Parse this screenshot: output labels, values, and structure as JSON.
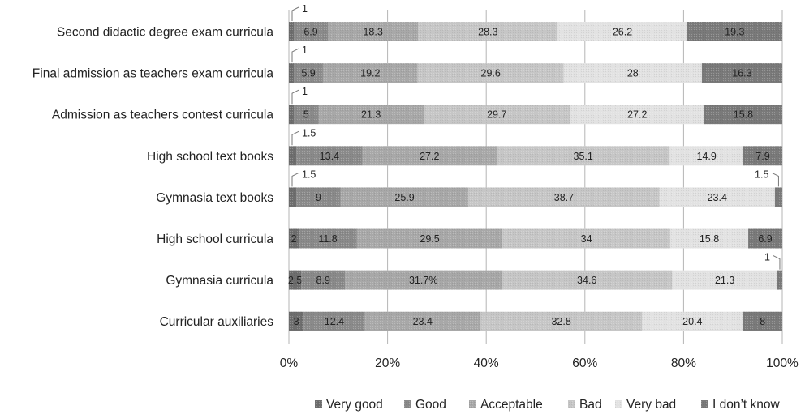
{
  "chart_data": {
    "type": "bar",
    "orientation": "horizontal",
    "stacked": "percent",
    "categories": [
      "Second didactic degree exam curricula",
      "Final admission as teachers exam curricula",
      "Admission as teachers contest curricula",
      "High school text books",
      "Gymnasia text books",
      "High school curricula",
      "Gymnasia curricula",
      "Curricular auxiliaries"
    ],
    "series": [
      {
        "name": "Very good",
        "color": "#6e6e6e",
        "values": [
          1,
          1,
          1,
          1.5,
          1.5,
          2,
          2.5,
          3
        ]
      },
      {
        "name": "Good",
        "color": "#8a8a8a",
        "values": [
          6.9,
          5.9,
          5,
          13.4,
          9,
          11.8,
          8.9,
          12.4
        ]
      },
      {
        "name": "Acceptable",
        "color": "#a8a8a8",
        "values": [
          18.3,
          19.2,
          21.3,
          27.2,
          25.9,
          29.5,
          31.7,
          23.4
        ]
      },
      {
        "name": "Bad",
        "color": "#c6c6c6",
        "values": [
          28.3,
          29.6,
          29.7,
          35.1,
          38.7,
          34,
          34.6,
          32.8
        ]
      },
      {
        "name": "Very bad",
        "color": "#e2e2e2",
        "values": [
          26.2,
          28,
          27.2,
          14.9,
          23.4,
          15.8,
          21.3,
          20.4
        ]
      },
      {
        "name": "I don’t know",
        "color": "#7a7a7a",
        "values": [
          19.3,
          16.3,
          15.8,
          7.9,
          1.5,
          6.9,
          1,
          8
        ]
      }
    ],
    "value_labels": [
      [
        "1",
        "6.9",
        "18.3",
        "28.3",
        "26.2",
        "19.3"
      ],
      [
        "1",
        "5.9",
        "19.2",
        "29.6",
        "28",
        "16.3"
      ],
      [
        "1",
        "5",
        "21.3",
        "29.7",
        "27.2",
        "15.8"
      ],
      [
        "1.5",
        "13.4",
        "27.2",
        "35.1",
        "14.9",
        "7.9"
      ],
      [
        "1.5",
        "9",
        "25.9",
        "38.7",
        "23.4",
        "1.5"
      ],
      [
        "2",
        "11.8",
        "29.5",
        "34",
        "15.8",
        "6.9"
      ],
      [
        "2.5",
        "8.9",
        "31.7%",
        "34.6",
        "21.3",
        "1"
      ],
      [
        "3",
        "12.4",
        "23.4",
        "32.8",
        "20.4",
        "8"
      ]
    ],
    "xticks": [
      "0%",
      "20%",
      "40%",
      "60%",
      "80%",
      "100%"
    ],
    "xlim": [
      0,
      100
    ],
    "grid": true,
    "legend": "bottom-right",
    "xlabel": "",
    "ylabel": "",
    "title": ""
  }
}
